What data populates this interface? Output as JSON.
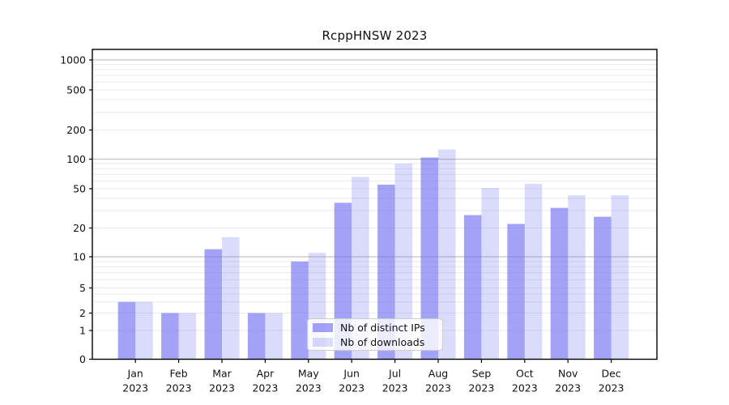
{
  "title": "RcppHNSW 2023",
  "chart_data": {
    "type": "bar",
    "categories": [
      "Jan",
      "Feb",
      "Mar",
      "Apr",
      "May",
      "Jun",
      "Jul",
      "Aug",
      "Sep",
      "Oct",
      "Nov",
      "Dec"
    ],
    "x_tick_second_line": "2023",
    "series": [
      {
        "name": "Nb of distinct IPs",
        "color": "rgba(105,105,240,0.62)",
        "values": [
          3,
          2,
          12,
          2,
          9,
          36,
          55,
          104,
          27,
          22,
          32,
          26
        ]
      },
      {
        "name": "Nb of downloads",
        "color": "rgba(105,105,240,0.24)",
        "values": [
          3,
          2,
          16,
          2,
          11,
          66,
          90,
          126,
          51,
          56,
          43,
          43
        ]
      }
    ],
    "ylabel": "",
    "xlabel": "",
    "y_ticks": [
      0,
      1,
      2,
      5,
      10,
      20,
      50,
      100,
      200,
      500,
      1000
    ],
    "y_scale": "log-like",
    "ylim": [
      0,
      1300
    ],
    "grid": "horizontal, log minor lines light gray, decade lines darker",
    "legend_position": "inside lower center",
    "colors": {
      "major_gridline": "#c3c3c3",
      "minor_gridline": "#eaeaea",
      "spine": "#000000",
      "text": "#111111"
    }
  }
}
